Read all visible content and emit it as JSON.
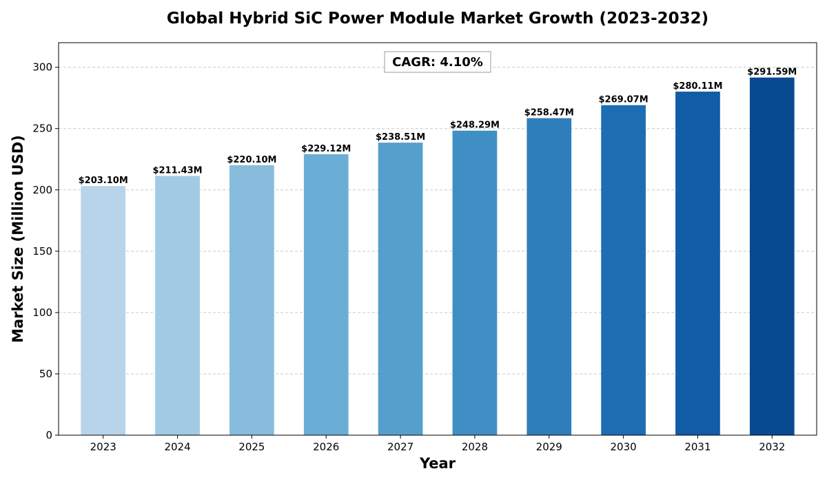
{
  "chart_data": {
    "type": "bar",
    "title": "Global Hybrid SiC Power Module Market Growth (2023-2032)",
    "xlabel": "Year",
    "ylabel": "Market Size (Million USD)",
    "categories": [
      "2023",
      "2024",
      "2025",
      "2026",
      "2027",
      "2028",
      "2029",
      "2030",
      "2031",
      "2032"
    ],
    "values": [
      203.1,
      211.43,
      220.1,
      229.12,
      238.51,
      248.29,
      258.47,
      269.07,
      280.11,
      291.59
    ],
    "data_labels": [
      "$203.10M",
      "$211.43M",
      "$220.10M",
      "$229.12M",
      "$238.51M",
      "$248.29M",
      "$258.47M",
      "$269.07M",
      "$280.11M",
      "$291.59M"
    ],
    "bar_colors": [
      "#b7d4ea",
      "#a1cbe2",
      "#87bcdc",
      "#6aaed6",
      "#559fcd",
      "#3f8fc5",
      "#2e7ebc",
      "#1e6db2",
      "#115ca5",
      "#084a91"
    ],
    "ylim": [
      0,
      320
    ],
    "yticks": [
      0,
      50,
      100,
      150,
      200,
      250,
      300
    ],
    "grid": "y-dashed",
    "annotation": "CAGR: 4.10%"
  }
}
